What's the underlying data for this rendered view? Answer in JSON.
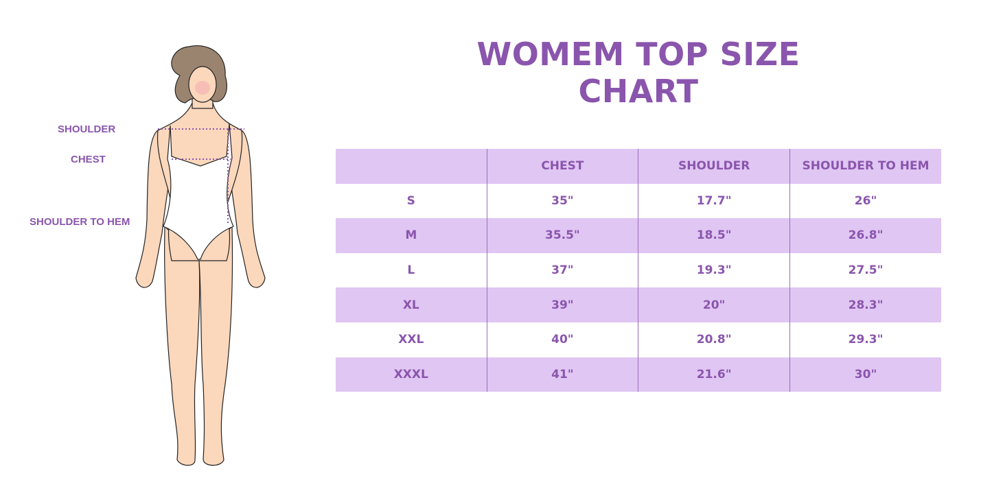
{
  "title": "WOMEM TOP SIZE CHART",
  "figure_labels": {
    "shoulder": "SHOULDER",
    "chest": "CHEST",
    "shoulder_to_hem": "SHOULDER TO HEM"
  },
  "colors": {
    "accent": "#8a55ad",
    "row_shade": "#e0c6f3"
  },
  "table": {
    "headers": [
      "",
      "CHEST",
      "SHOULDER",
      "SHOULDER TO HEM"
    ],
    "rows": [
      [
        "S",
        "35\"",
        "17.7\"",
        "26\""
      ],
      [
        "M",
        "35.5\"",
        "18.5\"",
        "26.8\""
      ],
      [
        "L",
        "37\"",
        "19.3\"",
        "27.5\""
      ],
      [
        "XL",
        "39\"",
        "20\"",
        "28.3\""
      ],
      [
        "XXL",
        "40\"",
        "20.8\"",
        "29.3\""
      ],
      [
        "XXXL",
        "41\"",
        "21.6\"",
        "30\""
      ]
    ]
  }
}
